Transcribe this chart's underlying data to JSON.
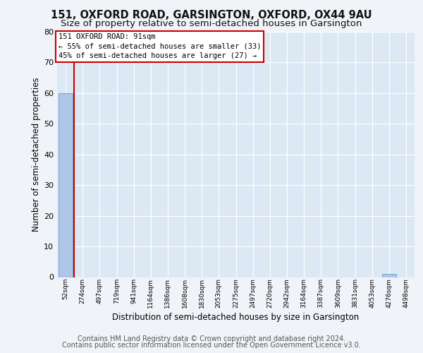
{
  "title1": "151, OXFORD ROAD, GARSINGTON, OXFORD, OX44 9AU",
  "title2": "Size of property relative to semi-detached houses in Garsington",
  "xlabel": "Distribution of semi-detached houses by size in Garsington",
  "ylabel": "Number of semi-detached properties",
  "footer1": "Contains HM Land Registry data © Crown copyright and database right 2024.",
  "footer2": "Contains public sector information licensed under the Open Government Licence v3.0.",
  "bin_labels": [
    "52sqm",
    "274sqm",
    "497sqm",
    "719sqm",
    "941sqm",
    "1164sqm",
    "1386sqm",
    "1608sqm",
    "1830sqm",
    "2053sqm",
    "2275sqm",
    "2497sqm",
    "2720sqm",
    "2942sqm",
    "3164sqm",
    "3387sqm",
    "3609sqm",
    "3831sqm",
    "4053sqm",
    "4276sqm",
    "4498sqm"
  ],
  "bar_heights": [
    60,
    0,
    0,
    0,
    0,
    0,
    0,
    0,
    0,
    0,
    0,
    0,
    0,
    0,
    0,
    0,
    0,
    0,
    0,
    1,
    0
  ],
  "bar_color": "#aec6e8",
  "bar_edge_color": "#5a9fd4",
  "ylim_max": 80,
  "yticks": [
    0,
    10,
    20,
    30,
    40,
    50,
    60,
    70,
    80
  ],
  "ann_line1": "151 OXFORD ROAD: 91sqm",
  "ann_line2": "← 55% of semi-detached houses are smaller (33)",
  "ann_line3": "45% of semi-detached houses are larger (27) →",
  "ann_box_edge": "#cc0000",
  "property_line_color": "#cc0000",
  "fig_bg": "#f0f4f8",
  "plot_bg": "#dce9f5",
  "grid_color": "#ffffff",
  "title1_fontsize": 10.5,
  "title2_fontsize": 9.5,
  "axis_label_fontsize": 8.5,
  "ylabel_fontsize": 8.5,
  "tick_fontsize": 8,
  "xtick_fontsize": 6.5,
  "ann_fontsize": 7.5,
  "footer_fontsize": 7
}
